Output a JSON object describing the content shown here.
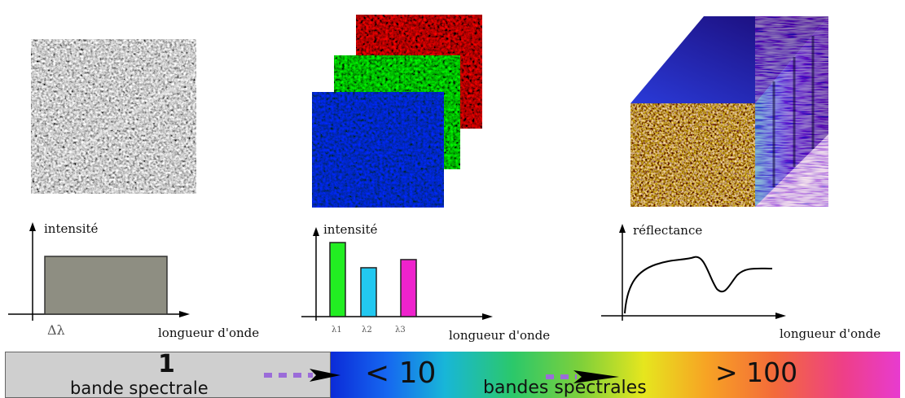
{
  "panels": [
    {
      "ylabel": "intensité",
      "xlabel": "longueur d'onde",
      "band_label": "Δλ"
    },
    {
      "ylabel": "intensité",
      "xlabel": "longueur d'onde",
      "bands": [
        "λ1",
        "λ2",
        "λ3"
      ],
      "bar_levels": [
        1.0,
        0.66,
        0.77
      ],
      "bar_colors": [
        "#22ee22",
        "#22c8f0",
        "#ee22cc"
      ]
    },
    {
      "ylabel": "réflectance",
      "xlabel": "longueur d'onde"
    }
  ],
  "scale_bar": {
    "count_1": "1",
    "label_1": "bande spectrale",
    "count_2": "< 10",
    "label_2": "bandes spectrales",
    "count_3": "> 100"
  },
  "colors": {
    "gray_panel": "#cfcfcf",
    "arrow_dash": "#9b6cd9",
    "pan_bar": "#8e8e82"
  }
}
